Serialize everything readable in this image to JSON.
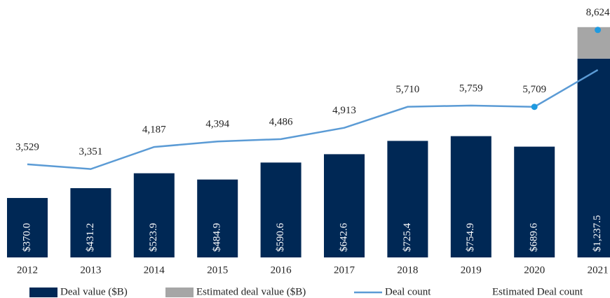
{
  "chart_data": {
    "type": "bar",
    "categories": [
      "2012",
      "2013",
      "2014",
      "2015",
      "2016",
      "2017",
      "2018",
      "2019",
      "2020",
      "2021"
    ],
    "ylim": [
      0,
      1450
    ],
    "y2lim": [
      0,
      8830
    ],
    "series": [
      {
        "name": "Deal value ($B)",
        "type": "bar",
        "color": "#002855",
        "values": [
          370.0,
          431.2,
          523.9,
          484.9,
          590.6,
          642.6,
          725.4,
          754.9,
          689.6,
          1237.5
        ],
        "value_labels": [
          "$370.0",
          "$431.2",
          "$523.9",
          "$484.9",
          "$590.6",
          "$642.6",
          "$725.4",
          "$754.9",
          "$689.6",
          "$1,237.5"
        ]
      },
      {
        "name": "Estimated deal value ($B)",
        "type": "bar",
        "color": "#a6a6a6",
        "values": [
          null,
          null,
          null,
          null,
          null,
          null,
          null,
          null,
          null,
          196
        ]
      },
      {
        "name": "Deal count",
        "type": "line",
        "axis": "y2",
        "color": "#5b9bd5",
        "values": [
          3529,
          3351,
          4187,
          4394,
          4486,
          4913,
          5710,
          5759,
          5709,
          7107
        ],
        "value_labels": [
          "3,529",
          "3,351",
          "4,187",
          "4,394",
          "4,486",
          "4,913",
          "5,710",
          "5,759",
          "5,709",
          null
        ]
      },
      {
        "name": "Estimated Deal count",
        "type": "marker",
        "axis": "y2",
        "color": "#1f9ae0",
        "values": [
          null,
          null,
          null,
          null,
          null,
          null,
          null,
          null,
          5709,
          8624
        ],
        "value_labels": [
          null,
          null,
          null,
          null,
          null,
          null,
          null,
          null,
          null,
          "8,624"
        ]
      }
    ]
  }
}
